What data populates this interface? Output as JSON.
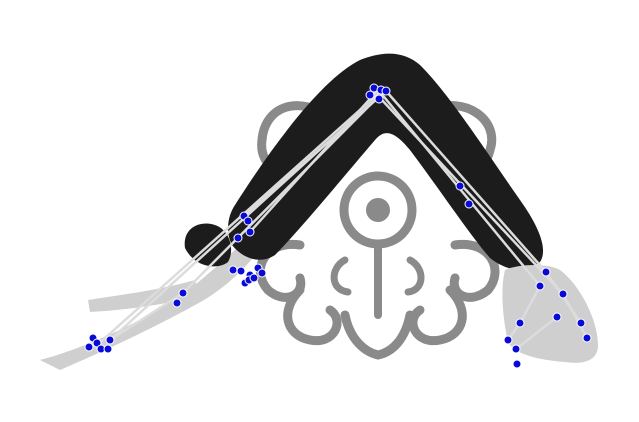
{
  "image": {
    "subject": "person-in-downward-dog-pose",
    "ornament": "grey-floral-mandala",
    "colors": {
      "background": "#ffffff",
      "clothing": "#1c1c1c",
      "skin": "#cfcfcf",
      "ornament": "#8a8a8a",
      "skeleton_line": "#dcdcdc",
      "keypoint": "#0a0ad8",
      "keypoint_stroke": "#ffffff"
    }
  }
}
